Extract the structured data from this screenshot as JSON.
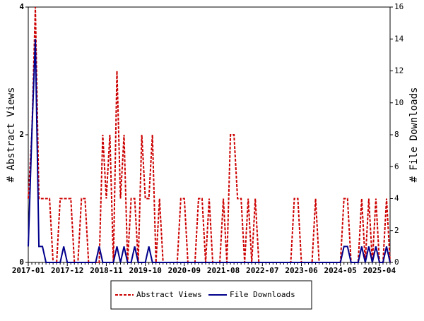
{
  "chart_data": {
    "type": "line",
    "categories": [
      "2017-01",
      null,
      null,
      null,
      null,
      null,
      null,
      null,
      null,
      null,
      null,
      "2017-12",
      null,
      null,
      null,
      null,
      null,
      null,
      null,
      null,
      null,
      null,
      "2018-11",
      null,
      null,
      null,
      null,
      null,
      null,
      null,
      null,
      null,
      null,
      "2019-10",
      null,
      null,
      null,
      null,
      null,
      null,
      null,
      null,
      null,
      null,
      "2020-09",
      null,
      null,
      null,
      null,
      null,
      null,
      null,
      null,
      null,
      null,
      "2021-08",
      null,
      null,
      null,
      null,
      null,
      null,
      null,
      null,
      null,
      null,
      "2022-07",
      null,
      null,
      null,
      null,
      null,
      null,
      null,
      null,
      null,
      null,
      "2023-06",
      null,
      null,
      null,
      null,
      null,
      null,
      null,
      null,
      null,
      null,
      "2024-05",
      null,
      null,
      null,
      null,
      null,
      null,
      null,
      null,
      null,
      null,
      "2025-04",
      null,
      null,
      null
    ],
    "series": [
      {
        "name": "Abstract Views",
        "color": "#cc0000",
        "dash": true,
        "values": [
          1,
          2,
          4,
          1,
          1,
          1,
          1,
          0,
          0,
          1,
          1,
          1,
          1,
          0,
          0,
          1,
          1,
          0,
          0,
          0,
          0,
          2,
          1,
          2,
          0,
          3,
          1,
          2,
          0,
          1,
          1,
          0,
          2,
          1,
          1,
          2,
          0,
          1,
          0,
          0,
          0,
          0,
          0,
          1,
          1,
          0,
          0,
          0,
          1,
          1,
          0,
          1,
          0,
          0,
          0,
          1,
          0,
          2,
          2,
          1,
          1,
          0,
          1,
          0,
          1,
          0,
          0,
          0,
          0,
          0,
          0,
          0,
          0,
          0,
          0,
          1,
          1,
          0,
          0,
          0,
          0,
          1,
          0,
          0,
          0,
          0,
          0,
          0,
          0,
          1,
          1,
          0,
          0,
          0,
          1,
          0,
          1,
          0,
          1,
          0,
          0,
          1,
          0
        ]
      },
      {
        "name": "File Downloads",
        "color": "#00008b",
        "dash": false,
        "axis": "y2",
        "values": [
          1,
          8,
          14,
          1,
          1,
          0,
          0,
          0,
          0,
          0,
          1,
          0,
          0,
          0,
          0,
          0,
          0,
          0,
          0,
          0,
          1,
          0,
          0,
          0,
          0,
          1,
          0,
          1,
          0,
          0,
          1,
          0,
          0,
          0,
          1,
          0,
          0,
          0,
          0,
          0,
          0,
          0,
          0,
          0,
          0,
          0,
          0,
          0,
          0,
          0,
          0,
          0,
          0,
          0,
          0,
          0,
          0,
          0,
          0,
          0,
          0,
          0,
          0,
          0,
          0,
          0,
          0,
          0,
          0,
          0,
          0,
          0,
          0,
          0,
          0,
          0,
          0,
          0,
          0,
          0,
          0,
          0,
          0,
          0,
          0,
          0,
          0,
          0,
          0,
          1,
          1,
          0,
          0,
          0,
          1,
          0,
          1,
          0,
          1,
          0,
          0,
          1,
          0
        ]
      }
    ],
    "ylabel": "# Abstract Views",
    "y2label": "# File Downloads",
    "ylim": [
      0,
      4
    ],
    "yticks": [
      0,
      2,
      4
    ],
    "y2lim": [
      0,
      16
    ],
    "y2ticks": [
      0,
      2,
      4,
      6,
      8,
      10,
      12,
      14,
      16
    ],
    "legend": "bottom"
  }
}
